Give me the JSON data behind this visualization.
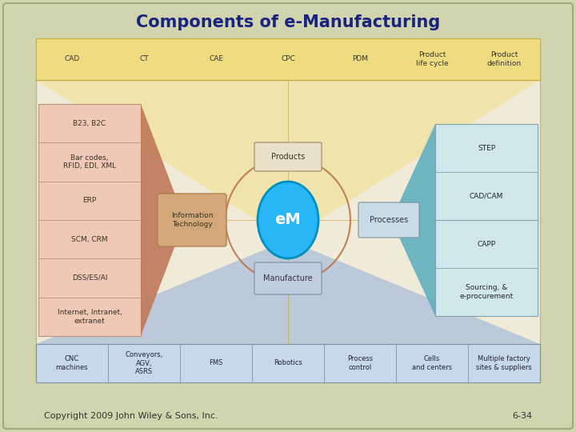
{
  "title": "Components of e-Manufacturing",
  "title_color": "#1a237e",
  "bg_outer": "#d0d5b0",
  "bg_inner": "#f0ead8",
  "footer_text": "Copyright 2009 John Wiley & Sons, Inc.",
  "footer_right": "6-34",
  "top_labels": [
    "CAD",
    "CT",
    "CAE",
    "CPC",
    "PDM",
    "Product\nlife cycle",
    "Product\ndefinition"
  ],
  "bottom_labels": [
    "CNC\nmachines",
    "Conveyors,\nAGV,\nASRS",
    "FMS",
    "Robotics",
    "Process\ncontrol",
    "Cells\nand centers",
    "Multiple factory\nsites & suppliers"
  ],
  "left_labels": [
    "B23, B2C",
    "Bar codes,\nRFID, EDI, XML",
    "ERP",
    "SCM, CRM",
    "DSS/ES/AI",
    "Internet, Intranet,\nextranet"
  ],
  "right_labels": [
    "STEP",
    "CAD/CAM",
    "CAPP",
    "Sourcing, &\ne-procurement"
  ],
  "center_label": "eM",
  "it_label": "Information\nTechnology",
  "products_label": "Products",
  "processes_label": "Processes",
  "manufacture_label": "Manufacture",
  "em_fill": "#29b6f6",
  "em_edge": "#0090c0",
  "em_text_color": "#ffffff",
  "it_box_color": "#d4a87a",
  "it_box_edge": "#b08050",
  "manufacture_box_color": "#c0cce0",
  "manufacture_box_edge": "#8090b0",
  "processes_box_color": "#c8dce8",
  "processes_box_edge": "#8090a0",
  "top_band_color": "#f0dc80",
  "bottom_band_color": "#a0b4d0",
  "bottom_row_color": "#c8d8ec",
  "left_panel_color": "#f0c8b8",
  "left_arrow_color": "#c07858",
  "right_panel_color": "#c8e4e8",
  "right_arrow_color": "#60b0c0",
  "arc_color": "#b87040",
  "vline_color": "#c8a840",
  "hline_color": "#c8a840"
}
